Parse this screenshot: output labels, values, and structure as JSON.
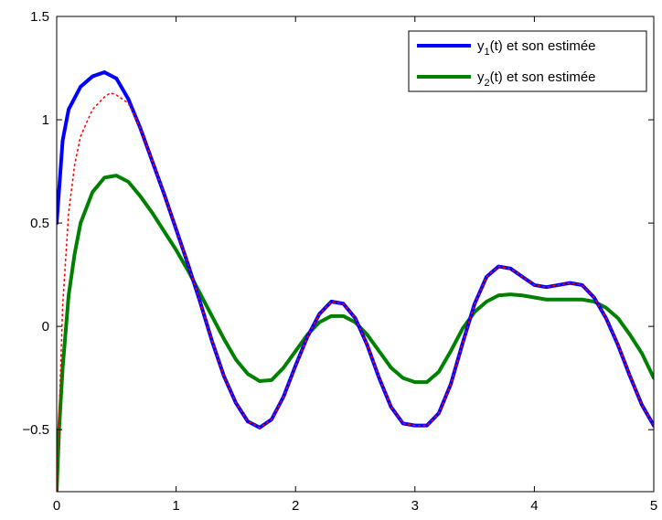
{
  "chart_data": {
    "type": "line",
    "title": "",
    "xlabel": "",
    "ylabel": "",
    "xlim": [
      0,
      5
    ],
    "ylim": [
      -0.8,
      1.5
    ],
    "xticks": [
      0,
      1,
      2,
      3,
      4,
      5
    ],
    "xtick_labels": [
      "0",
      "1",
      "2",
      "3",
      "4",
      "5"
    ],
    "yticks": [
      -0.5,
      0,
      0.5,
      1,
      1.5
    ],
    "ytick_labels": [
      "−0.5",
      "0",
      "0.5",
      "1",
      "1.5"
    ],
    "grid": false,
    "legend_position": "top-right",
    "legend": [
      {
        "prefix": "y",
        "sub": "1",
        "suffix": "(t) et son estimée",
        "color": "#0000ff"
      },
      {
        "prefix": "y",
        "sub": "2",
        "suffix": "(t) et son estimée",
        "color": "#008000"
      }
    ],
    "series": [
      {
        "color": "#0000ff",
        "style": "solid",
        "points": [
          [
            0,
            0.5
          ],
          [
            0.05,
            0.9
          ],
          [
            0.1,
            1.05
          ],
          [
            0.2,
            1.16
          ],
          [
            0.3,
            1.21
          ],
          [
            0.4,
            1.23
          ],
          [
            0.5,
            1.2
          ],
          [
            0.6,
            1.1
          ],
          [
            0.7,
            0.96
          ],
          [
            0.8,
            0.8
          ],
          [
            0.9,
            0.64
          ],
          [
            1.0,
            0.47
          ],
          [
            1.1,
            0.3
          ],
          [
            1.2,
            0.12
          ],
          [
            1.3,
            -0.07
          ],
          [
            1.4,
            -0.24
          ],
          [
            1.5,
            -0.37
          ],
          [
            1.6,
            -0.46
          ],
          [
            1.7,
            -0.49
          ],
          [
            1.8,
            -0.45
          ],
          [
            1.9,
            -0.34
          ],
          [
            2.0,
            -0.19
          ],
          [
            2.1,
            -0.05
          ],
          [
            2.2,
            0.06
          ],
          [
            2.3,
            0.12
          ],
          [
            2.4,
            0.11
          ],
          [
            2.5,
            0.04
          ],
          [
            2.6,
            -0.09
          ],
          [
            2.7,
            -0.25
          ],
          [
            2.8,
            -0.39
          ],
          [
            2.9,
            -0.47
          ],
          [
            3.0,
            -0.48
          ],
          [
            3.1,
            -0.48
          ],
          [
            3.2,
            -0.42
          ],
          [
            3.3,
            -0.28
          ],
          [
            3.4,
            -0.08
          ],
          [
            3.5,
            0.11
          ],
          [
            3.6,
            0.24
          ],
          [
            3.7,
            0.29
          ],
          [
            3.8,
            0.28
          ],
          [
            3.9,
            0.24
          ],
          [
            4.0,
            0.2
          ],
          [
            4.1,
            0.19
          ],
          [
            4.2,
            0.2
          ],
          [
            4.3,
            0.21
          ],
          [
            4.4,
            0.2
          ],
          [
            4.5,
            0.14
          ],
          [
            4.6,
            0.04
          ],
          [
            4.7,
            -0.09
          ],
          [
            4.8,
            -0.24
          ],
          [
            4.9,
            -0.38
          ],
          [
            5.0,
            -0.48
          ]
        ]
      },
      {
        "color": "#008000",
        "style": "solid",
        "points": [
          [
            0,
            -0.8
          ],
          [
            0.02,
            -0.5
          ],
          [
            0.05,
            -0.2
          ],
          [
            0.1,
            0.15
          ],
          [
            0.15,
            0.35
          ],
          [
            0.2,
            0.5
          ],
          [
            0.3,
            0.65
          ],
          [
            0.4,
            0.72
          ],
          [
            0.5,
            0.73
          ],
          [
            0.6,
            0.7
          ],
          [
            0.7,
            0.63
          ],
          [
            0.8,
            0.55
          ],
          [
            0.9,
            0.46
          ],
          [
            1.0,
            0.37
          ],
          [
            1.1,
            0.27
          ],
          [
            1.2,
            0.16
          ],
          [
            1.3,
            0.05
          ],
          [
            1.4,
            -0.06
          ],
          [
            1.5,
            -0.16
          ],
          [
            1.6,
            -0.23
          ],
          [
            1.7,
            -0.265
          ],
          [
            1.8,
            -0.26
          ],
          [
            1.9,
            -0.2
          ],
          [
            2.0,
            -0.12
          ],
          [
            2.1,
            -0.04
          ],
          [
            2.2,
            0.02
          ],
          [
            2.3,
            0.05
          ],
          [
            2.4,
            0.05
          ],
          [
            2.5,
            0.02
          ],
          [
            2.6,
            -0.04
          ],
          [
            2.7,
            -0.12
          ],
          [
            2.8,
            -0.2
          ],
          [
            2.9,
            -0.25
          ],
          [
            3.0,
            -0.27
          ],
          [
            3.1,
            -0.27
          ],
          [
            3.2,
            -0.22
          ],
          [
            3.3,
            -0.12
          ],
          [
            3.4,
            -0.01
          ],
          [
            3.5,
            0.07
          ],
          [
            3.6,
            0.12
          ],
          [
            3.7,
            0.15
          ],
          [
            3.8,
            0.155
          ],
          [
            3.9,
            0.15
          ],
          [
            4.0,
            0.14
          ],
          [
            4.1,
            0.13
          ],
          [
            4.2,
            0.13
          ],
          [
            4.3,
            0.13
          ],
          [
            4.4,
            0.13
          ],
          [
            4.5,
            0.12
          ],
          [
            4.6,
            0.09
          ],
          [
            4.7,
            0.04
          ],
          [
            4.8,
            -0.04
          ],
          [
            4.9,
            -0.13
          ],
          [
            5.0,
            -0.25
          ]
        ]
      },
      {
        "color": "#ff0000",
        "style": "dotted",
        "points": [
          [
            0,
            -0.8
          ],
          [
            0.02,
            -0.45
          ],
          [
            0.05,
            0.1
          ],
          [
            0.1,
            0.55
          ],
          [
            0.15,
            0.78
          ],
          [
            0.2,
            0.92
          ],
          [
            0.3,
            1.05
          ],
          [
            0.4,
            1.11
          ],
          [
            0.45,
            1.13
          ],
          [
            0.5,
            1.12
          ],
          [
            0.6,
            1.08
          ],
          [
            0.7,
            0.96
          ],
          [
            0.8,
            0.8
          ],
          [
            0.9,
            0.64
          ],
          [
            1.0,
            0.47
          ],
          [
            1.1,
            0.3
          ],
          [
            1.2,
            0.12
          ],
          [
            1.3,
            -0.07
          ],
          [
            1.4,
            -0.24
          ],
          [
            1.5,
            -0.37
          ],
          [
            1.6,
            -0.46
          ],
          [
            1.7,
            -0.49
          ],
          [
            1.8,
            -0.45
          ],
          [
            1.9,
            -0.34
          ],
          [
            2.0,
            -0.19
          ],
          [
            2.1,
            -0.05
          ],
          [
            2.2,
            0.06
          ],
          [
            2.3,
            0.12
          ],
          [
            2.4,
            0.11
          ],
          [
            2.5,
            0.04
          ],
          [
            2.6,
            -0.09
          ],
          [
            2.7,
            -0.25
          ],
          [
            2.8,
            -0.39
          ],
          [
            2.9,
            -0.47
          ],
          [
            3.0,
            -0.48
          ],
          [
            3.1,
            -0.48
          ],
          [
            3.2,
            -0.42
          ],
          [
            3.3,
            -0.28
          ],
          [
            3.4,
            -0.08
          ],
          [
            3.5,
            0.11
          ],
          [
            3.6,
            0.24
          ],
          [
            3.7,
            0.29
          ],
          [
            3.8,
            0.28
          ],
          [
            3.9,
            0.24
          ],
          [
            4.0,
            0.2
          ],
          [
            4.1,
            0.19
          ],
          [
            4.2,
            0.2
          ],
          [
            4.3,
            0.21
          ],
          [
            4.4,
            0.2
          ],
          [
            4.5,
            0.14
          ],
          [
            4.6,
            0.04
          ],
          [
            4.7,
            -0.09
          ],
          [
            4.8,
            -0.24
          ],
          [
            4.9,
            -0.38
          ],
          [
            5.0,
            -0.48
          ]
        ]
      }
    ]
  }
}
